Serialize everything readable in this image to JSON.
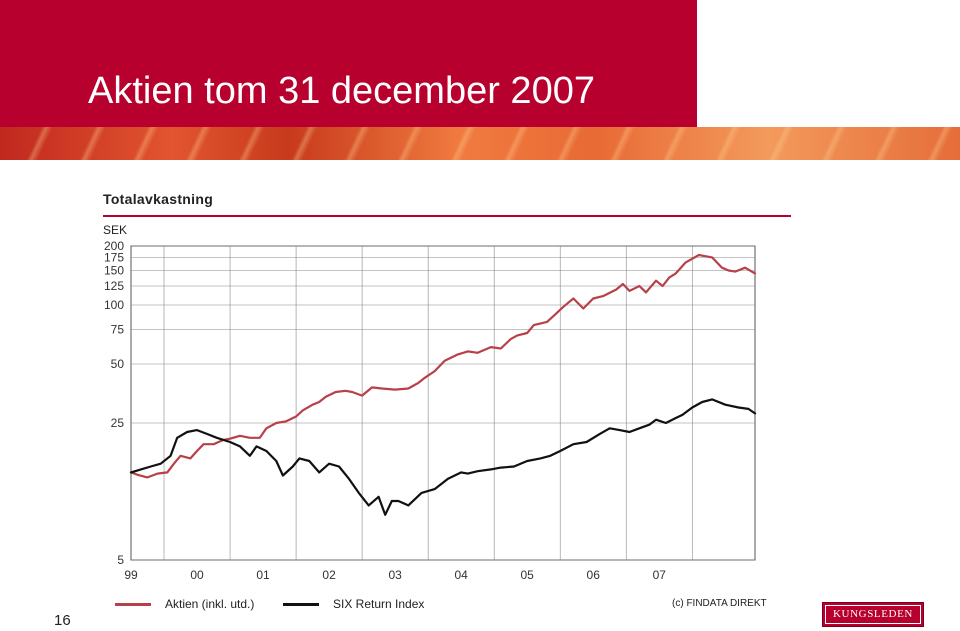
{
  "slide": {
    "title": "Aktien tom 31 december 2007",
    "page_number": "16",
    "logo_text": "KUNGSLEDEN",
    "source": "(c) FINDATA DIREKT",
    "accent_color": "#b8002e"
  },
  "chart_data": {
    "type": "line",
    "title": "Totalavkastning",
    "ylabel": "SEK",
    "yscale": "log",
    "ylim": [
      5,
      200
    ],
    "yticks": [
      200,
      175,
      150,
      125,
      100,
      75,
      50,
      25,
      5
    ],
    "x_tick_labels": [
      "99",
      "00",
      "01",
      "02",
      "03",
      "04",
      "05",
      "06",
      "07"
    ],
    "xlim": [
      1998.5,
      2007.95
    ],
    "grid": true,
    "legend_position": "bottom",
    "series": [
      {
        "name": "Aktien (inkl. utd.)",
        "color": "#b84048",
        "x": [
          1998.5,
          1998.6,
          1998.75,
          1998.9,
          1999.05,
          1999.15,
          1999.25,
          1999.4,
          1999.5,
          1999.6,
          1999.75,
          1999.9,
          2000.0,
          2000.15,
          2000.3,
          2000.45,
          2000.55,
          2000.7,
          2000.85,
          2001.0,
          2001.1,
          2001.25,
          2001.35,
          2001.45,
          2001.6,
          2001.75,
          2001.85,
          2002.0,
          2002.15,
          2002.3,
          2002.5,
          2002.7,
          2002.85,
          2002.95,
          2003.1,
          2003.25,
          2003.45,
          2003.6,
          2003.75,
          2003.95,
          2004.1,
          2004.25,
          2004.35,
          2004.5,
          2004.6,
          2004.8,
          2004.9,
          2005.05,
          2005.2,
          2005.35,
          2005.5,
          2005.65,
          2005.85,
          2005.95,
          2006.05,
          2006.2,
          2006.3,
          2006.45,
          2006.55,
          2006.65,
          2006.75,
          2006.9,
          2007.1,
          2007.3,
          2007.45,
          2007.55,
          2007.65,
          2007.8,
          2007.95
        ],
        "values": [
          14.0,
          13.6,
          13.2,
          13.8,
          14.0,
          15.5,
          17.0,
          16.5,
          18.0,
          19.5,
          19.5,
          20.5,
          20.8,
          21.5,
          21.0,
          21.0,
          23.5,
          25.0,
          25.5,
          27.0,
          29.0,
          31.0,
          32.0,
          34.0,
          36.0,
          36.5,
          36.0,
          34.5,
          38.0,
          37.5,
          37.0,
          37.5,
          40.0,
          42.5,
          46.0,
          52.0,
          56.0,
          58.0,
          57.0,
          61.0,
          60.0,
          67.0,
          70.0,
          72.0,
          79.0,
          82.0,
          88.0,
          98.0,
          108.0,
          96.0,
          108.0,
          111.0,
          120.0,
          128.0,
          118.0,
          125.0,
          116.0,
          133.0,
          125.0,
          138.0,
          145.0,
          165.0,
          180.0,
          175.0,
          155.0,
          150.0,
          148.0,
          155.0,
          145.0
        ]
      },
      {
        "name": "SIX Return Index",
        "color": "#111111",
        "x": [
          1998.5,
          1998.65,
          1998.8,
          1998.95,
          1999.1,
          1999.2,
          1999.35,
          1999.5,
          1999.65,
          1999.8,
          2000.0,
          2000.15,
          2000.3,
          2000.4,
          2000.55,
          2000.7,
          2000.8,
          2000.95,
          2001.05,
          2001.2,
          2001.35,
          2001.5,
          2001.65,
          2001.8,
          2001.95,
          2002.1,
          2002.25,
          2002.35,
          2002.45,
          2002.55,
          2002.7,
          2002.9,
          2003.1,
          2003.3,
          2003.5,
          2003.6,
          2003.75,
          2003.95,
          2004.1,
          2004.3,
          2004.5,
          2004.7,
          2004.85,
          2005.0,
          2005.2,
          2005.4,
          2005.6,
          2005.75,
          2005.9,
          2006.05,
          2006.2,
          2006.35,
          2006.45,
          2006.6,
          2006.75,
          2006.85,
          2007.0,
          2007.15,
          2007.3,
          2007.5,
          2007.7,
          2007.85,
          2007.95
        ],
        "values": [
          14.0,
          14.5,
          15.0,
          15.5,
          17.0,
          21.0,
          22.5,
          23.0,
          22.0,
          21.0,
          20.0,
          19.0,
          17.0,
          19.0,
          18.0,
          16.0,
          13.5,
          15.0,
          16.5,
          16.0,
          14.0,
          15.5,
          15.0,
          13.0,
          11.0,
          9.5,
          10.5,
          8.5,
          10.0,
          10.0,
          9.5,
          11.0,
          11.5,
          13.0,
          14.0,
          13.8,
          14.2,
          14.5,
          14.8,
          15.0,
          16.0,
          16.5,
          17.0,
          18.0,
          19.5,
          20.0,
          22.0,
          23.5,
          23.0,
          22.5,
          23.5,
          24.5,
          26.0,
          25.0,
          26.5,
          27.5,
          30.0,
          32.0,
          33.0,
          31.0,
          30.0,
          29.5,
          28.0
        ]
      }
    ]
  }
}
